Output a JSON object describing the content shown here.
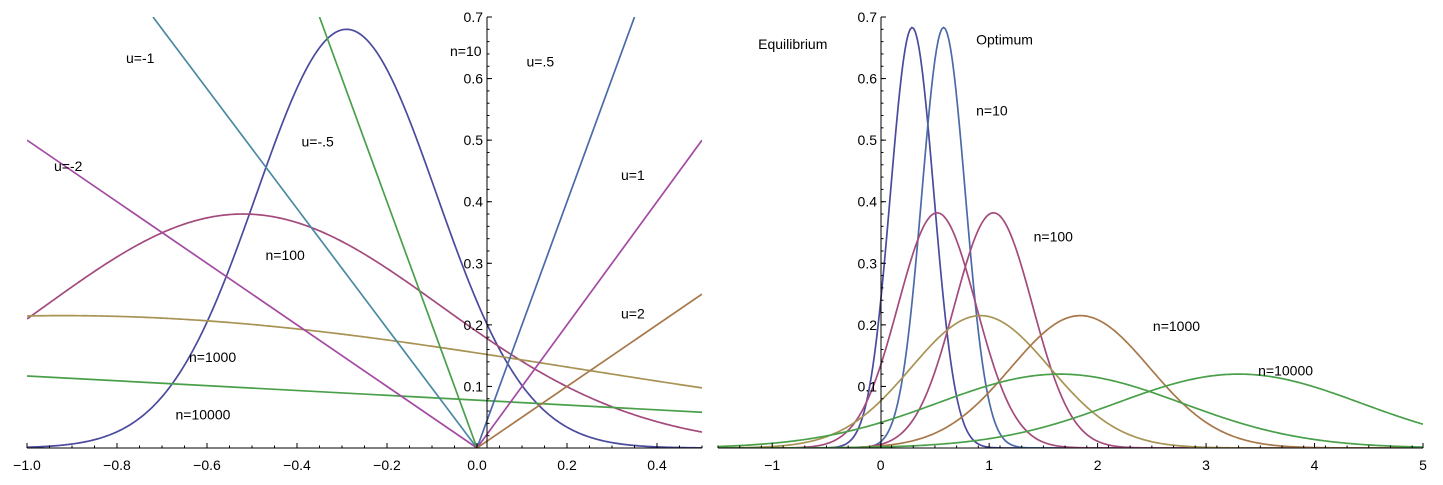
{
  "colors": {
    "n10": "#4a4a9e",
    "n100": "#a34a7d",
    "n1000": "#a89355",
    "n10000": "#4aa04a",
    "u_neg1": "#4a8aa0",
    "u_neg2": "#a34aa3",
    "u_neg05": "#4aa04a",
    "u_05": "#4a6aa8",
    "u_1": "#a34aa3",
    "u_2": "#a8784a",
    "opt_n10": "#4a6aa8"
  },
  "chart_data": [
    {
      "type": "line",
      "xlim": [
        -1.0,
        0.5
      ],
      "ylim": [
        0,
        0.7
      ],
      "grid": false,
      "x_ticks": [
        "−1.0",
        "−0.8",
        "−0.6",
        "−0.4",
        "−0.2",
        "0.0",
        "0.2",
        "0.4"
      ],
      "x_tick_values": [
        -1.0,
        -0.8,
        -0.6,
        -0.4,
        -0.2,
        0.0,
        0.2,
        0.4
      ],
      "y_ticks": [
        "0.1",
        "0.2",
        "0.3",
        "0.4",
        "0.5",
        "0.6",
        "0.7"
      ],
      "y_tick_values": [
        0.1,
        0.2,
        0.3,
        0.4,
        0.5,
        0.6,
        0.7
      ],
      "series": [
        {
          "name": "n=10",
          "kind": "gaussian",
          "peak_x": -0.29,
          "peak_y": 0.68,
          "sigma": 0.2
        },
        {
          "name": "n=100",
          "kind": "gaussian",
          "peak_x": -0.52,
          "peak_y": 0.38,
          "sigma": 0.44
        },
        {
          "name": "n=1000",
          "kind": "gaussian",
          "peak_x": -0.92,
          "peak_y": 0.215,
          "sigma": 1.13
        },
        {
          "name": "n=10000",
          "kind": "linear",
          "x": [
            -1.0,
            0.5
          ],
          "y": [
            0.117,
            0.058
          ]
        },
        {
          "name": "u=-1",
          "kind": "linear",
          "x": [
            -0.72,
            0.0
          ],
          "y": [
            0.7,
            0.0
          ]
        },
        {
          "name": "u=-2",
          "kind": "linear",
          "x": [
            -1.0,
            0.0
          ],
          "y": [
            0.5,
            0.0
          ]
        },
        {
          "name": "u=-.5",
          "kind": "linear",
          "x": [
            -0.35,
            0.0
          ],
          "y": [
            0.7,
            0.0
          ]
        },
        {
          "name": "u=.5",
          "kind": "linear",
          "x": [
            0.0,
            0.35
          ],
          "y": [
            0.0,
            0.7
          ]
        },
        {
          "name": "u=1",
          "kind": "linear",
          "x": [
            0.0,
            0.5
          ],
          "y": [
            0.0,
            0.5
          ]
        },
        {
          "name": "u=2",
          "kind": "linear",
          "x": [
            0.0,
            0.5
          ],
          "y": [
            0.0,
            0.25
          ]
        }
      ],
      "annotations": [
        {
          "text": "u=-1",
          "x": -0.78,
          "y": 0.625
        },
        {
          "text": "n=10",
          "x": -0.06,
          "y": 0.637
        },
        {
          "text": "u=.5",
          "x": 0.11,
          "y": 0.62
        },
        {
          "text": "u=-.5",
          "x": -0.39,
          "y": 0.49
        },
        {
          "text": "u=-2",
          "x": -0.94,
          "y": 0.45
        },
        {
          "text": "u=1",
          "x": 0.32,
          "y": 0.435
        },
        {
          "text": "n=100",
          "x": -0.47,
          "y": 0.305
        },
        {
          "text": "u=2",
          "x": 0.32,
          "y": 0.21
        },
        {
          "text": "n=1000",
          "x": -0.64,
          "y": 0.14
        },
        {
          "text": "n=10000",
          "x": -0.67,
          "y": 0.046
        }
      ]
    },
    {
      "type": "line",
      "xlim": [
        -1.5,
        5.0
      ],
      "ylim": [
        0,
        0.7
      ],
      "grid": false,
      "x_ticks": [
        "−1",
        "0",
        "1",
        "2",
        "3",
        "4",
        "5"
      ],
      "x_tick_values": [
        -1,
        0,
        1,
        2,
        3,
        4,
        5
      ],
      "y_ticks": [
        "0.1",
        "0.2",
        "0.3",
        "0.4",
        "0.5",
        "0.6",
        "0.7"
      ],
      "y_tick_values": [
        0.1,
        0.2,
        0.3,
        0.4,
        0.5,
        0.6,
        0.7
      ],
      "series": [
        {
          "name": "Equilibrium n=10",
          "kind": "gaussian",
          "peak_x": 0.29,
          "peak_y": 0.683,
          "sigma": 0.2
        },
        {
          "name": "Optimum n=10",
          "kind": "gaussian",
          "peak_x": 0.58,
          "peak_y": 0.683,
          "sigma": 0.2
        },
        {
          "name": "Equilibrium n=100",
          "kind": "gaussian",
          "peak_x": 0.52,
          "peak_y": 0.382,
          "sigma": 0.36
        },
        {
          "name": "Optimum n=100",
          "kind": "gaussian",
          "peak_x": 1.04,
          "peak_y": 0.382,
          "sigma": 0.36
        },
        {
          "name": "Equilibrium n=1000",
          "kind": "gaussian",
          "peak_x": 0.92,
          "peak_y": 0.215,
          "sigma": 0.64
        },
        {
          "name": "Optimum n=1000",
          "kind": "gaussian",
          "peak_x": 1.84,
          "peak_y": 0.215,
          "sigma": 0.64
        },
        {
          "name": "Equilibrium n=10000",
          "kind": "gaussian",
          "peak_x": 1.65,
          "peak_y": 0.12,
          "sigma": 1.13
        },
        {
          "name": "Optimum n=10000",
          "kind": "gaussian",
          "peak_x": 3.3,
          "peak_y": 0.12,
          "sigma": 1.13
        }
      ],
      "annotations": [
        {
          "text": "Equilibrium",
          "x": -1.13,
          "y": 0.648
        },
        {
          "text": "Optimum",
          "x": 0.88,
          "y": 0.655
        },
        {
          "text": "n=10",
          "x": 0.88,
          "y": 0.54
        },
        {
          "text": "n=100",
          "x": 1.41,
          "y": 0.335
        },
        {
          "text": "n=1000",
          "x": 2.51,
          "y": 0.19
        },
        {
          "text": "n=10000",
          "x": 3.48,
          "y": 0.118
        }
      ]
    }
  ]
}
